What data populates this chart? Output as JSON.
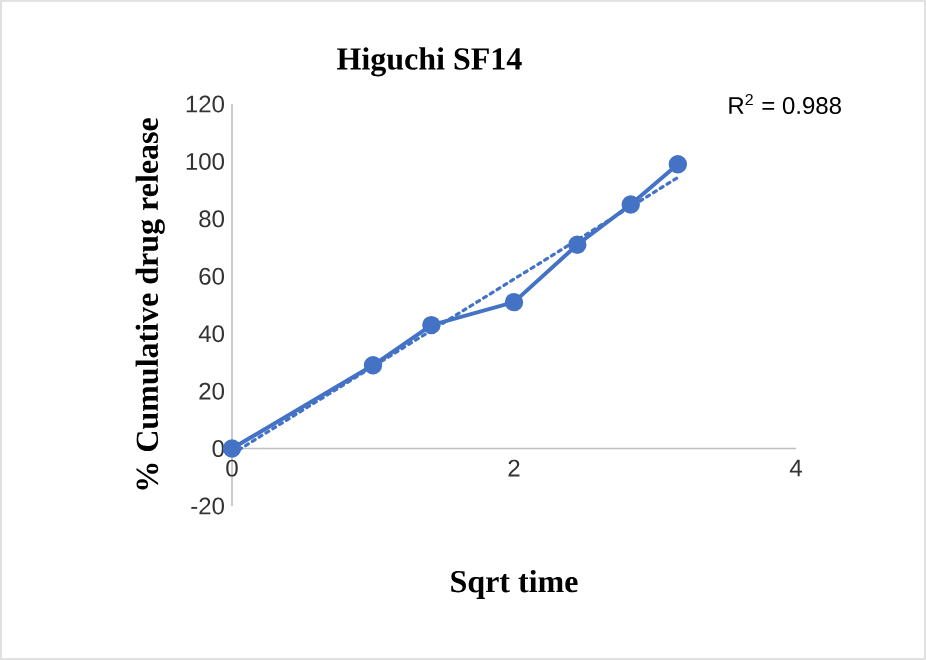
{
  "chart_data": {
    "type": "line",
    "title": "Higuchi SF14",
    "xlabel": "Sqrt time",
    "ylabel": "% Cumulative drug release",
    "annotations": [
      "R$^{2}$ = 0.988"
    ],
    "x": [
      0,
      1,
      1.414,
      2,
      2.449,
      2.828,
      3.162
    ],
    "series": [
      {
        "color": "#4472c4",
        "values": [
          0,
          29,
          43,
          51,
          71,
          85,
          99
        ],
        "marker": "circle",
        "line_style": "solid"
      },
      {
        "type": "line",
        "x": [
          0,
          3.162
        ],
        "values": [
          -1.9,
          94.4
        ],
        "color": "#4472c4",
        "marker": "none",
        "line_style": "dotted"
      }
    ],
    "xlim": [
      0,
      4
    ],
    "xticks": [
      0,
      2,
      4
    ],
    "ylim": [
      -20,
      120
    ],
    "yticks": [
      -20,
      0,
      20,
      40,
      60,
      80,
      100,
      120
    ]
  }
}
